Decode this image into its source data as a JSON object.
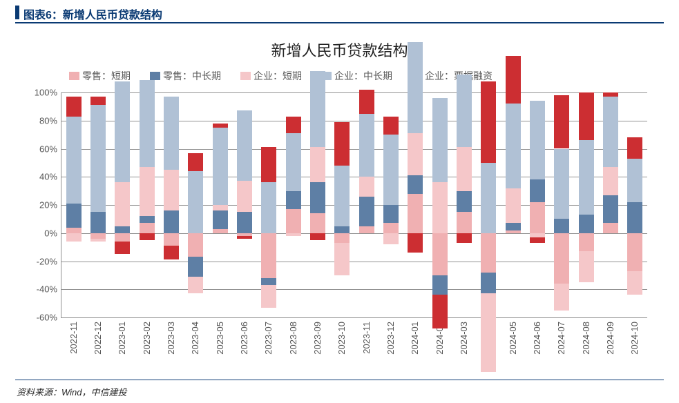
{
  "header": {
    "label": "图表6：新增人民币贷款结构",
    "bar_color": "#0a3a73"
  },
  "footer": {
    "label": "资料来源：Wind，中信建投",
    "separator_color": "#0a3a73"
  },
  "chart": {
    "type": "stacked-bar",
    "title": "新增人民币贷款结构",
    "title_fontsize": 22,
    "background_color": "#ffffff",
    "grid_color": "#909090",
    "axis_color": "#909090",
    "label_fontsize": 13,
    "bar_width": 0.62,
    "ylim": [
      -60,
      100
    ],
    "ytick_step": 20,
    "yticks": [
      "-60%",
      "-40%",
      "-20%",
      "0%",
      "20%",
      "40%",
      "60%",
      "80%",
      "100%"
    ],
    "categories": [
      "2022-11",
      "2022-12",
      "2023-01",
      "2023-02",
      "2023-03",
      "2023-04",
      "2023-05",
      "2023-06",
      "2023-07",
      "2023-08",
      "2023-09",
      "2023-10",
      "2023-11",
      "2023-12",
      "2024-01",
      "2024-02",
      "2024-03",
      "2024-04",
      "2024-05",
      "2024-06",
      "2024-07",
      "2024-08",
      "2024-09",
      "2024-10"
    ],
    "series": [
      {
        "name": "零售：短期",
        "color": "#f0b0b2",
        "values": [
          4,
          -4,
          -6,
          7,
          -9,
          -17,
          3,
          -2,
          -32,
          17,
          14,
          -7,
          5,
          7,
          28,
          -30,
          15,
          -28,
          2,
          22,
          -36,
          -13,
          7,
          -27
        ]
      },
      {
        "name": "零售：中长期",
        "color": "#5e7fa5",
        "values": [
          17,
          15,
          5,
          5,
          16,
          -14,
          13,
          15,
          -5,
          13,
          22,
          5,
          21,
          13,
          13,
          -14,
          15,
          -15,
          5,
          16,
          10,
          13,
          20,
          22
        ]
      },
      {
        "name": "企业：短期",
        "color": "#f5c7c9",
        "values": [
          -6,
          -2,
          31,
          35,
          29,
          -12,
          4,
          22,
          -16,
          -2,
          25,
          -23,
          14,
          -8,
          30,
          36,
          31,
          -56,
          25,
          -3,
          -19,
          -22,
          20,
          -17
        ]
      },
      {
        "name": "企业：中长期",
        "color": "#b0c1d5",
        "values": [
          62,
          76,
          72,
          62,
          52,
          44,
          55,
          50,
          36,
          41,
          54,
          43,
          45,
          50,
          65,
          60,
          52,
          50,
          60,
          56,
          50,
          53,
          50,
          31
        ]
      },
      {
        "name": "企业：票据融资",
        "color": "#cc2e32",
        "values": [
          14,
          6,
          -9,
          -5,
          -10,
          13,
          3,
          -2,
          25,
          12,
          -5,
          31,
          17,
          13,
          -14,
          -24,
          -7,
          58,
          34,
          -4,
          38,
          34,
          3,
          15
        ]
      }
    ],
    "legend": {
      "position": "top",
      "labels": [
        "零售：短期",
        "零售：中长期",
        "企业：短期",
        "企业：中长期",
        "企业：票据融资"
      ]
    }
  }
}
